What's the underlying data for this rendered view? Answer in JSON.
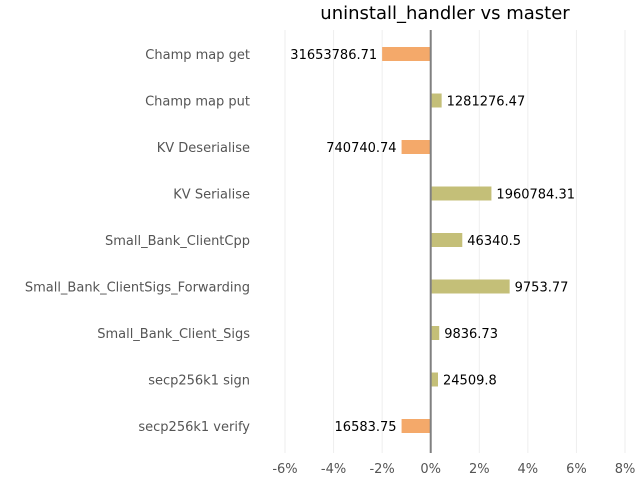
{
  "chart_data": {
    "type": "bar",
    "orientation": "horizontal",
    "title": "uninstall_handler vs master",
    "categories": [
      "Champ map get",
      "Champ map put",
      "KV Deserialise",
      "KV Serialise",
      "Small_Bank_ClientCpp",
      "Small_Bank_ClientSigs_Forwarding",
      "Small_Bank_Client_Sigs",
      "secp256k1 sign",
      "secp256k1 verify"
    ],
    "values": [
      -2.0,
      0.45,
      -1.2,
      2.5,
      1.3,
      3.25,
      0.35,
      0.3,
      -1.2
    ],
    "data_labels": [
      "31653786.71",
      "1281276.47",
      "740740.74",
      "1960784.31",
      "46340.5",
      "9753.77",
      "9836.73",
      "24509.8",
      "16583.75"
    ],
    "xlim": [
      -6.0,
      8.0
    ],
    "xticks": [
      -6,
      -4,
      -2,
      0,
      2,
      4,
      6,
      8
    ],
    "xtick_labels": [
      "-6%",
      "-4%",
      "-2%",
      "0%",
      "2%",
      "4%",
      "6%",
      "8%"
    ],
    "xlabel": "",
    "ylabel": "",
    "grid": "vertical",
    "colors": {
      "negative": "#f4a96a",
      "positive": "#c4bf78",
      "zero_line": "#808080",
      "grid": "#eeeeee"
    }
  }
}
